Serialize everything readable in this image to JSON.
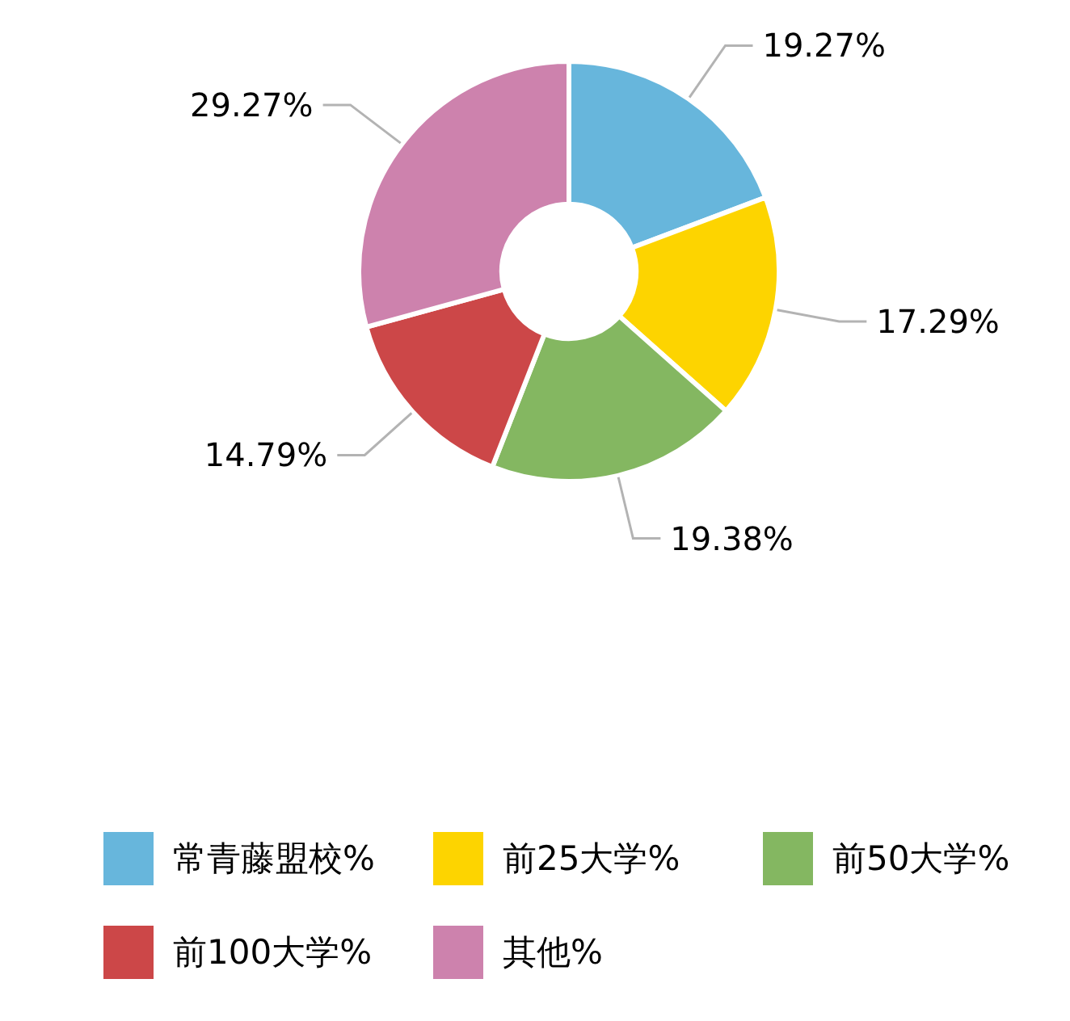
{
  "chart_data": {
    "type": "donut",
    "categories": [
      "常青藤盟校%",
      "前25大学%",
      "前50大学%",
      "前100大学%",
      "其他%"
    ],
    "values": [
      19.27,
      17.29,
      19.38,
      14.79,
      29.27
    ],
    "colors": [
      "#67b6dc",
      "#fdd400",
      "#84b761",
      "#cc4748",
      "#cd82ad"
    ],
    "value_labels": [
      "19.27%",
      "17.29%",
      "19.38%",
      "14.79%",
      "29.27%"
    ],
    "legend": "bottom"
  }
}
